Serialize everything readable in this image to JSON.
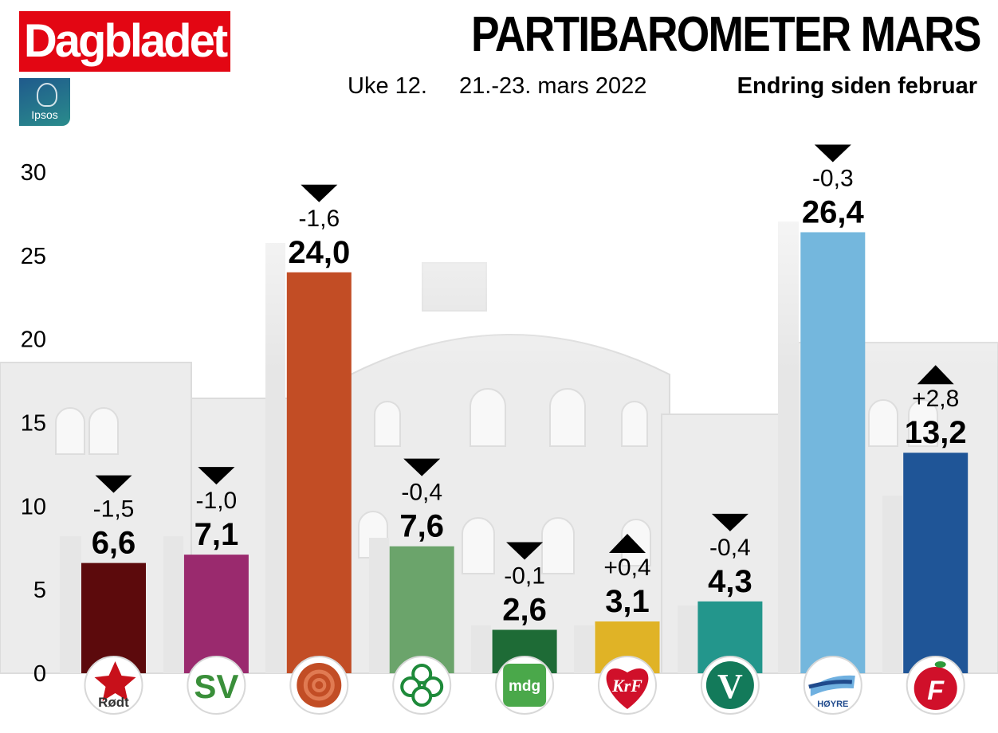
{
  "header": {
    "brand": "Dagbladet",
    "pollster": "Ipsos",
    "title": "PARTIBAROMETER MARS",
    "week": "Uke 12.",
    "date": "21.-23. mars 2022",
    "change_caption": "Endring siden februar"
  },
  "colors": {
    "brand_red": "#e30613",
    "background_building": "#e8e8e8",
    "text": "#000000"
  },
  "chart_data": {
    "type": "bar",
    "title": "PARTIBAROMETER MARS",
    "xlabel": "",
    "ylabel": "",
    "ylim": [
      0,
      30
    ],
    "y_ticks": [
      "0",
      "5",
      "10",
      "15",
      "20",
      "25",
      "30"
    ],
    "grid": false,
    "categories": [
      "Rødt",
      "SV",
      "Ap",
      "Sp",
      "MDG",
      "KrF",
      "V",
      "Høyre",
      "FrP"
    ],
    "values": [
      6.6,
      7.1,
      24.0,
      7.6,
      2.6,
      3.1,
      4.3,
      26.4,
      13.2
    ],
    "value_labels": [
      "6,6",
      "7,1",
      "24,0",
      "7,6",
      "2,6",
      "3,1",
      "4,3",
      "26,4",
      "13,2"
    ],
    "changes": [
      -1.5,
      -1.0,
      -1.6,
      -0.4,
      -0.1,
      0.4,
      -0.4,
      -0.3,
      2.8
    ],
    "change_labels": [
      "-1,5",
      "-1,0",
      "-1,6",
      "-0,4",
      "-0,1",
      "+0,4",
      "-0,4",
      "-0,3",
      "+2,8"
    ],
    "previous_values": [
      8.1,
      8.1,
      25.6,
      8.0,
      2.7,
      2.7,
      4.7,
      26.7,
      10.4
    ],
    "bar_colors": [
      "#5c0a0c",
      "#9a2a6e",
      "#c24d25",
      "#6ba46b",
      "#1e6b36",
      "#e0b326",
      "#23968c",
      "#74b7dd",
      "#1f5597"
    ],
    "logos": [
      {
        "name": "rodt-logo",
        "text": "Rødt",
        "fg": "#333333",
        "accent": "#c8101a"
      },
      {
        "name": "sv-logo",
        "text": "SV",
        "fg": "#3a8f3a",
        "accent": "#d0102a"
      },
      {
        "name": "ap-logo",
        "text": "",
        "fg": "#c24d25",
        "accent": "#e07a52"
      },
      {
        "name": "sp-logo",
        "text": "",
        "fg": "#1e8a3a",
        "accent": "#1e8a3a"
      },
      {
        "name": "mdg-logo",
        "text": "mdg",
        "fg": "#ffffff",
        "accent": "#4aa84a"
      },
      {
        "name": "krf-logo",
        "text": "KrF",
        "fg": "#ffffff",
        "accent": "#d0102a"
      },
      {
        "name": "venstre-logo",
        "text": "V",
        "fg": "#ffffff",
        "accent": "#137a5a"
      },
      {
        "name": "hoyre-logo",
        "text": "HØYRE",
        "fg": "#1f4a8c",
        "accent": "#6fb0e0"
      },
      {
        "name": "frp-logo",
        "text": "F",
        "fg": "#ffffff",
        "accent": "#d0102a"
      }
    ]
  }
}
